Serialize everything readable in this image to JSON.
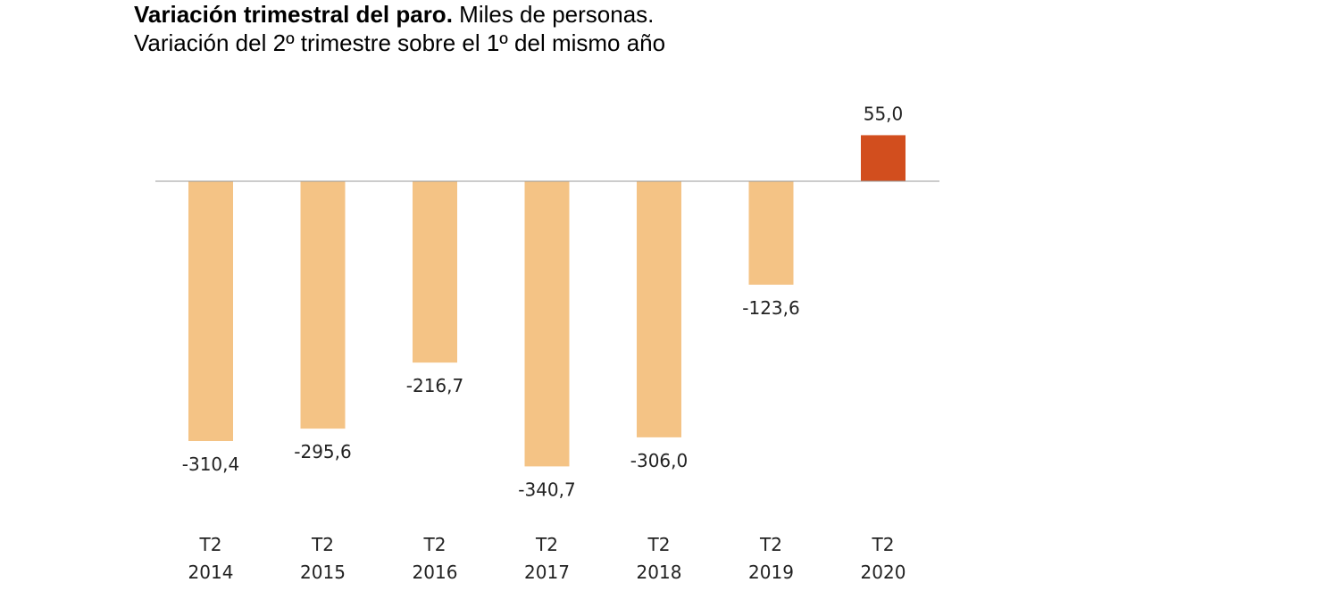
{
  "chart_data": {
    "type": "bar",
    "title_bold": "Variación trimestral del paro.",
    "title_rest": "Miles de personas.",
    "subtitle": "Variación del 2º trimestre sobre el 1º del mismo año",
    "categories": [
      [
        "T2",
        "2014"
      ],
      [
        "T2",
        "2015"
      ],
      [
        "T2",
        "2016"
      ],
      [
        "T2",
        "2017"
      ],
      [
        "T2",
        "2018"
      ],
      [
        "T2",
        "2019"
      ],
      [
        "T2",
        "2020"
      ]
    ],
    "values": [
      -310.4,
      -295.6,
      -216.7,
      -340.7,
      -306.0,
      -123.6,
      55.0
    ],
    "value_labels": [
      "-310,4",
      "-295,6",
      "-216,7",
      "-340,7",
      "-306,0",
      "-123,6",
      "55,0"
    ],
    "colors": {
      "negative": "#F4C385",
      "highlight": "#D24E1E",
      "axis": "#999999"
    },
    "xlabel": "",
    "ylabel": ""
  }
}
